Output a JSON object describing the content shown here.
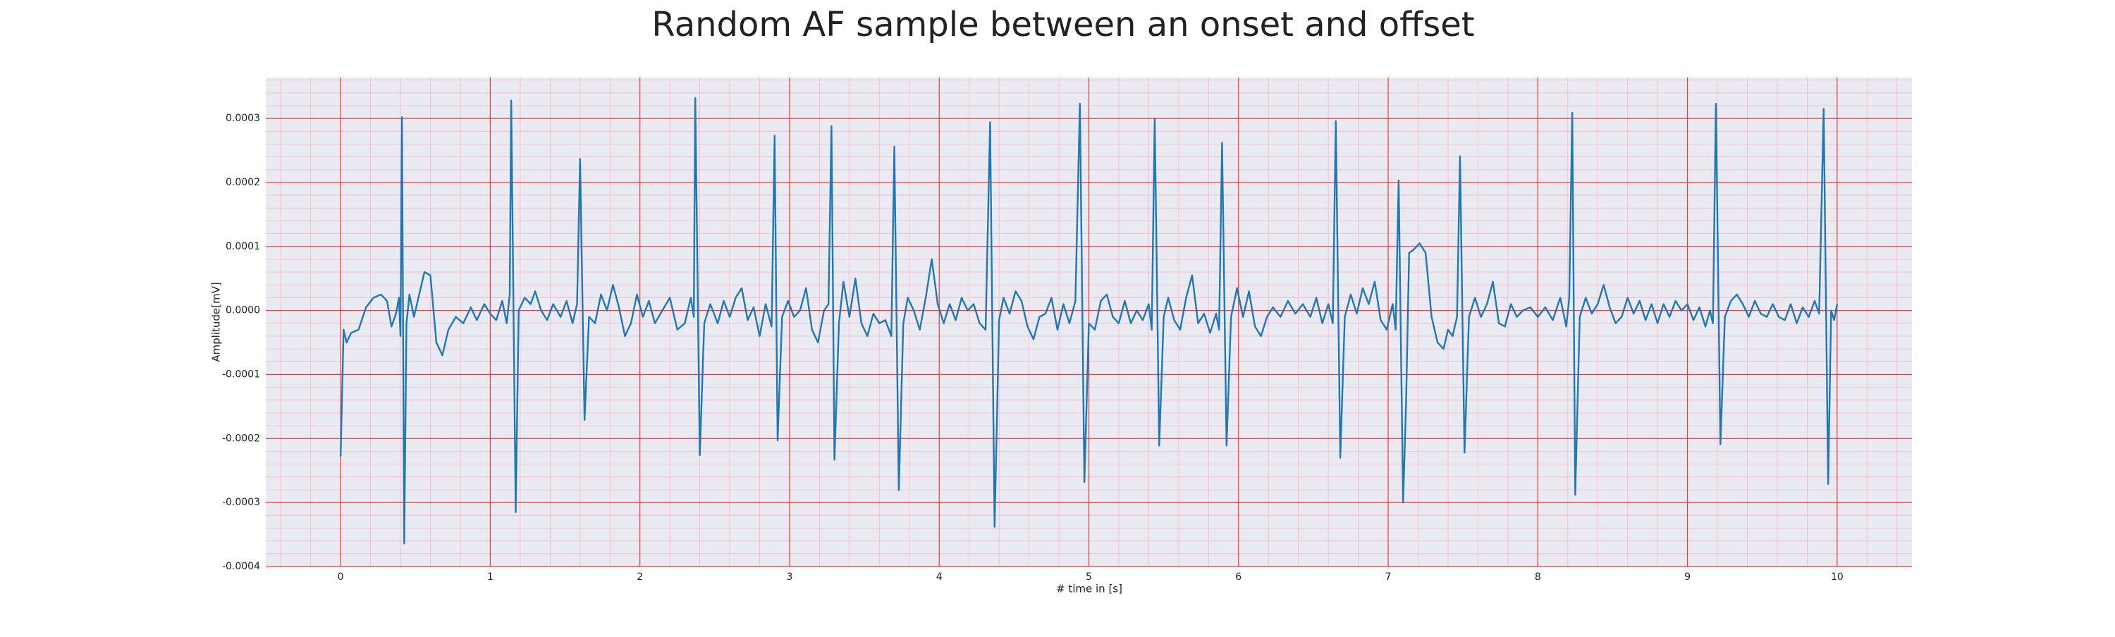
{
  "chart_data": {
    "type": "line",
    "title": "Random AF sample between an onset and offset",
    "xlabel": "# time in [s]",
    "ylabel": "Amplitude[mV]",
    "color": "#1f77b4",
    "grid": true,
    "minor_grid": true,
    "xlim": [
      -0.5,
      10.5
    ],
    "ylim": [
      -0.0004,
      0.000364
    ],
    "xticks": [
      0,
      1,
      2,
      3,
      4,
      5,
      6,
      7,
      8,
      9,
      10
    ],
    "yticks": [
      {
        "value": -0.0004,
        "label": "-0.0004"
      },
      {
        "value": -0.0003,
        "label": "-0.0003"
      },
      {
        "value": -0.0002,
        "label": "-0.0002"
      },
      {
        "value": -0.0001,
        "label": "-0.0001"
      },
      {
        "value": 0,
        "label": "0.0000"
      },
      {
        "value": 0.0001,
        "label": "0.0001"
      },
      {
        "value": 0.0002,
        "label": "0.0002"
      },
      {
        "value": 0.0003,
        "label": "0.0003"
      }
    ],
    "x": [
      0.0,
      0.02,
      0.04,
      0.07,
      0.12,
      0.17,
      0.22,
      0.27,
      0.31,
      0.34,
      0.37,
      0.39,
      0.4,
      0.41,
      0.425,
      0.44,
      0.46,
      0.49,
      0.52,
      0.56,
      0.6,
      0.64,
      0.68,
      0.72,
      0.77,
      0.82,
      0.87,
      0.91,
      0.96,
      1.0,
      1.04,
      1.08,
      1.11,
      1.13,
      1.14,
      1.17,
      1.19,
      1.23,
      1.27,
      1.3,
      1.34,
      1.38,
      1.42,
      1.47,
      1.51,
      1.55,
      1.58,
      1.6,
      1.63,
      1.66,
      1.7,
      1.74,
      1.78,
      1.82,
      1.86,
      1.9,
      1.94,
      1.98,
      2.02,
      2.06,
      2.1,
      2.15,
      2.2,
      2.25,
      2.3,
      2.34,
      2.36,
      2.37,
      2.4,
      2.43,
      2.47,
      2.52,
      2.56,
      2.6,
      2.64,
      2.68,
      2.72,
      2.76,
      2.8,
      2.84,
      2.88,
      2.9,
      2.92,
      2.95,
      2.99,
      3.03,
      3.07,
      3.11,
      3.15,
      3.19,
      3.23,
      3.26,
      3.28,
      3.3,
      3.33,
      3.36,
      3.4,
      3.44,
      3.48,
      3.52,
      3.56,
      3.6,
      3.64,
      3.68,
      3.7,
      3.73,
      3.76,
      3.79,
      3.83,
      3.87,
      3.91,
      3.95,
      3.99,
      4.03,
      4.07,
      4.11,
      4.15,
      4.19,
      4.23,
      4.27,
      4.31,
      4.34,
      4.37,
      4.4,
      4.43,
      4.47,
      4.51,
      4.55,
      4.59,
      4.63,
      4.67,
      4.71,
      4.75,
      4.79,
      4.83,
      4.87,
      4.91,
      4.94,
      4.97,
      5.0,
      5.04,
      5.08,
      5.12,
      5.16,
      5.2,
      5.24,
      5.28,
      5.32,
      5.36,
      5.4,
      5.42,
      5.44,
      5.47,
      5.5,
      5.53,
      5.57,
      5.61,
      5.65,
      5.69,
      5.73,
      5.77,
      5.81,
      5.85,
      5.87,
      5.89,
      5.92,
      5.95,
      5.99,
      6.03,
      6.07,
      6.11,
      6.15,
      6.19,
      6.23,
      6.28,
      6.33,
      6.38,
      6.43,
      6.48,
      6.52,
      6.56,
      6.6,
      6.63,
      6.65,
      6.68,
      6.71,
      6.75,
      6.79,
      6.83,
      6.87,
      6.91,
      6.95,
      6.99,
      7.03,
      7.05,
      7.07,
      7.1,
      7.12,
      7.14,
      7.17,
      7.21,
      7.25,
      7.29,
      7.33,
      7.37,
      7.4,
      7.43,
      7.46,
      7.48,
      7.51,
      7.54,
      7.58,
      7.62,
      7.66,
      7.7,
      7.74,
      7.78,
      7.82,
      7.86,
      7.9,
      7.95,
      8.0,
      8.05,
      8.1,
      8.15,
      8.19,
      8.21,
      8.23,
      8.25,
      8.28,
      8.32,
      8.36,
      8.4,
      8.44,
      8.48,
      8.52,
      8.56,
      8.6,
      8.64,
      8.68,
      8.72,
      8.76,
      8.8,
      8.84,
      8.88,
      8.92,
      8.96,
      9.0,
      9.04,
      9.08,
      9.12,
      9.15,
      9.17,
      9.19,
      9.22,
      9.25,
      9.29,
      9.33,
      9.37,
      9.41,
      9.45,
      9.49,
      9.53,
      9.57,
      9.61,
      9.65,
      9.69,
      9.73,
      9.77,
      9.81,
      9.85,
      9.88,
      9.91,
      9.94,
      9.96,
      9.98,
      10.0
    ],
    "values": [
      -0.000228,
      -3e-05,
      -5e-05,
      -3.5e-05,
      -3e-05,
      5e-06,
      2e-05,
      2.5e-05,
      1.5e-05,
      -2.5e-05,
      -5e-06,
      2e-05,
      -4e-05,
      0.000302,
      -0.000364,
      -2e-05,
      2.5e-05,
      -1e-05,
      2e-05,
      6e-05,
      5.5e-05,
      -5e-05,
      -7e-05,
      -3e-05,
      -1e-05,
      -2e-05,
      5e-06,
      -1.5e-05,
      1e-05,
      -5e-06,
      -1.5e-05,
      1.5e-05,
      -2e-05,
      2.5e-05,
      0.000328,
      -0.000315,
      0,
      2e-05,
      1e-05,
      3e-05,
      0,
      -1.5e-05,
      1e-05,
      -1e-05,
      1.5e-05,
      -2e-05,
      1e-05,
      0.000237,
      -0.000171,
      -1e-05,
      -2e-05,
      2.5e-05,
      0,
      4e-05,
      5e-06,
      -4e-05,
      -2e-05,
      2.5e-05,
      -1e-05,
      1.5e-05,
      -2e-05,
      0,
      2e-05,
      -3e-05,
      -2e-05,
      2e-05,
      -1e-05,
      0.000332,
      -0.000226,
      -2e-05,
      1e-05,
      -2e-05,
      1.5e-05,
      -1e-05,
      2e-05,
      3.5e-05,
      -1.5e-05,
      5e-06,
      -4e-05,
      1e-05,
      -2.5e-05,
      0.000273,
      -0.000203,
      -1e-05,
      1.5e-05,
      -1e-05,
      0,
      3.5e-05,
      -3e-05,
      -5e-05,
      0,
      1e-05,
      0.000288,
      -0.000233,
      -2e-05,
      4.5e-05,
      -1e-05,
      5e-05,
      -2e-05,
      -4e-05,
      -5e-06,
      -2e-05,
      -1.5e-05,
      -4e-05,
      0.000256,
      -0.000281,
      -2e-05,
      2e-05,
      0,
      -3e-05,
      2e-05,
      8e-05,
      1e-05,
      -2e-05,
      1e-05,
      -1.5e-05,
      2e-05,
      0,
      1e-05,
      -2e-05,
      -3e-05,
      0.000294,
      -0.000338,
      -1.5e-05,
      2e-05,
      -5e-06,
      3e-05,
      1.5e-05,
      -2.5e-05,
      -4.5e-05,
      -1e-05,
      -5e-06,
      2e-05,
      -3e-05,
      1e-05,
      -2e-05,
      1.5e-05,
      0.000323,
      -0.000268,
      -2e-05,
      -3e-05,
      1.5e-05,
      2.5e-05,
      -1e-05,
      -2e-05,
      1.5e-05,
      -2e-05,
      0,
      -1.5e-05,
      1e-05,
      -3e-05,
      0.0003,
      -0.000211,
      -1e-05,
      2e-05,
      -1.5e-05,
      -3e-05,
      2e-05,
      5.5e-05,
      -2e-05,
      -5e-06,
      -3.5e-05,
      -5e-06,
      -3e-05,
      0.000262,
      -0.000211,
      -1e-05,
      3.5e-05,
      -1e-05,
      3e-05,
      -2.5e-05,
      -4e-05,
      -1e-05,
      5e-06,
      -1e-05,
      1.5e-05,
      -5e-06,
      1e-05,
      -1e-05,
      2e-05,
      -2e-05,
      1e-05,
      -2e-05,
      0.000296,
      -0.00023,
      -1e-05,
      2.5e-05,
      -5e-06,
      3.5e-05,
      1e-05,
      4.5e-05,
      -1.5e-05,
      -3e-05,
      1e-05,
      -3e-05,
      0.000203,
      -0.0003,
      -0.00014,
      9e-05,
      9.5e-05,
      0.000105,
      9e-05,
      -1e-05,
      -5e-05,
      -6e-05,
      -3e-05,
      -4e-05,
      -1e-05,
      0.000241,
      -0.000222,
      -1e-05,
      2e-05,
      -1e-05,
      1e-05,
      4.5e-05,
      -2e-05,
      -2.5e-05,
      1e-05,
      -1e-05,
      0,
      5e-06,
      -1e-05,
      5e-06,
      -1.5e-05,
      2e-05,
      -2.5e-05,
      2e-05,
      0.000309,
      -0.000288,
      -1e-05,
      2e-05,
      -5e-06,
      1e-05,
      4e-05,
      5e-06,
      -2e-05,
      -1e-05,
      2e-05,
      -5e-06,
      1.5e-05,
      -1.5e-05,
      1e-05,
      -2e-05,
      1e-05,
      -1e-05,
      1.5e-05,
      0,
      1e-05,
      -1.5e-05,
      5e-06,
      -2.5e-05,
      0,
      -2e-05,
      0.000323,
      -0.000209,
      -1e-05,
      1.5e-05,
      2.5e-05,
      1e-05,
      -1e-05,
      1.5e-05,
      -5e-06,
      -1e-05,
      1e-05,
      -1e-05,
      -1.5e-05,
      1e-05,
      -2e-05,
      5e-06,
      -1e-05,
      1.5e-05,
      -5e-06,
      0.000315,
      -0.000271,
      0,
      -1.5e-05,
      1e-05
    ]
  }
}
